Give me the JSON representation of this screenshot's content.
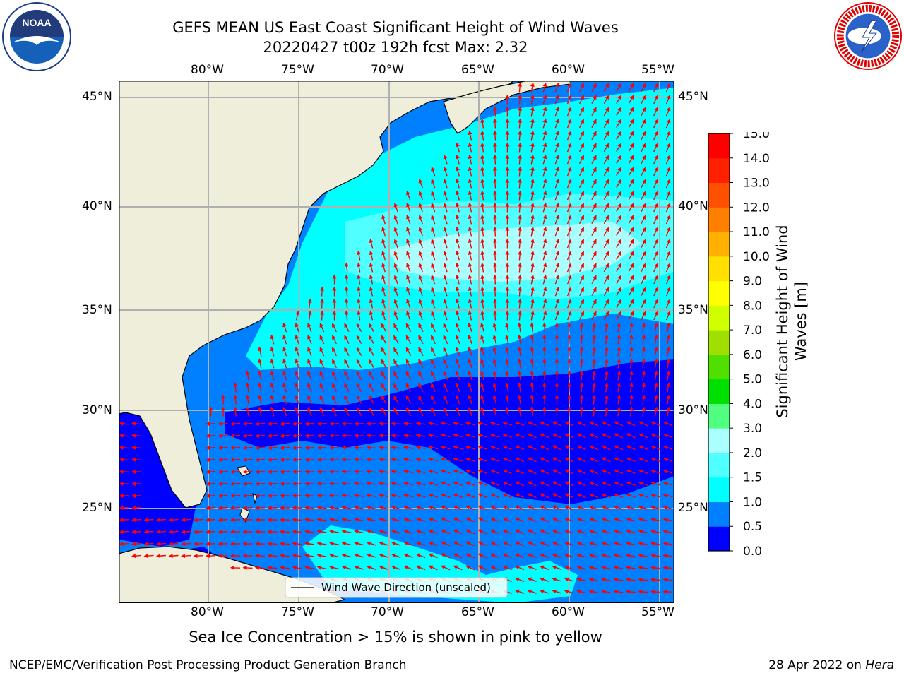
{
  "title": {
    "line1": "GEFS MEAN US East Coast Significant Height of Wind Waves",
    "line2": "20220427 t00z 192h fcst   Max: 2.32"
  },
  "logos": {
    "noaa": {
      "text": "NOAA",
      "ring_text": "NATIONAL OCEANIC AND ATMOSPHERIC ADMINISTRATION · U.S. DEPARTMENT OF COMMERCE"
    },
    "nws": {
      "ring_text": "NATIONAL WEATHER SERVICE"
    }
  },
  "map": {
    "lon_labels": [
      "80°W",
      "75°W",
      "70°W",
      "65°W",
      "60°W",
      "55°W"
    ],
    "lat_labels": [
      "45°N",
      "40°N",
      "35°N",
      "30°N",
      "25°N"
    ],
    "lon_values": [
      -80,
      -75,
      -70,
      -65,
      -60,
      -55
    ],
    "lat_values": [
      45,
      40,
      35,
      30,
      25
    ],
    "extent": {
      "lon_min": -85,
      "lon_max": -54.5,
      "lat_min": 20.5,
      "lat_max": 46
    },
    "legend_label": "Wind Wave Direction (unscaled)",
    "arrow_color": "#ff0000",
    "land_color": "#efeedb"
  },
  "colorbar": {
    "ticks": [
      "15.0",
      "14.0",
      "13.0",
      "12.0",
      "11.0",
      "10.0",
      "9.0",
      "8.0",
      "7.0",
      "6.0",
      "5.0",
      "4.0",
      "3.0",
      "2.0",
      "1.5",
      "1.0",
      "0.5",
      "0.0"
    ],
    "colors_bottom_to_top": [
      "#0000ff",
      "#0080ff",
      "#00ffff",
      "#50ffff",
      "#aaffff",
      "#50ff80",
      "#00e000",
      "#50e000",
      "#a0e000",
      "#d0ff00",
      "#ffff00",
      "#ffe000",
      "#ffb000",
      "#ff8000",
      "#ff5000",
      "#ff2000",
      "#ff0000"
    ],
    "label_line1": "Significant Height of Wind",
    "label_line2": "Waves [m]"
  },
  "subtitle": "Sea Ice Concentration > 15% is shown in pink to yellow",
  "footer": {
    "credit": "NCEP/EMC/Verification Post Processing Product Generation Branch",
    "date": "28 Apr 2022 on",
    "host": "Hera"
  }
}
